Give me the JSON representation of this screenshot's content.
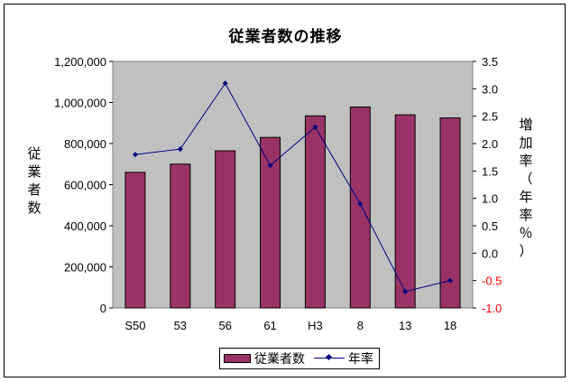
{
  "chart_data": {
    "type": "bar",
    "title": "従業者数の推移",
    "categories": [
      "S50",
      "53",
      "56",
      "61",
      "H3",
      "8",
      "13",
      "18"
    ],
    "series": [
      {
        "name": "従業者数",
        "type": "bar",
        "axis": "left",
        "color": "#993366",
        "values": [
          660000,
          700000,
          765000,
          830000,
          935000,
          978000,
          940000,
          925000
        ]
      },
      {
        "name": "年率",
        "type": "line",
        "axis": "right",
        "color": "#000080",
        "values": [
          1.8,
          1.9,
          3.1,
          1.6,
          2.3,
          0.9,
          -0.7,
          -0.5
        ]
      }
    ],
    "ylabel_left": "従業者数",
    "ylabel_right": "増加率（年率％）",
    "ylim_left": [
      0,
      1200000
    ],
    "ylim_right": [
      -1.0,
      3.5
    ],
    "yticks_left": [
      "0",
      "200,000",
      "400,000",
      "600,000",
      "800,000",
      "1,000,000",
      "1,200,000"
    ],
    "yticks_right": [
      "-1.0",
      "-0.5",
      "0.0",
      "0.5",
      "1.0",
      "1.5",
      "2.0",
      "2.5",
      "3.0",
      "3.5"
    ],
    "grid": false,
    "plot_background": "#c0c0c0",
    "negative_tick_color": "#ff0000",
    "legend_position": "bottom"
  }
}
